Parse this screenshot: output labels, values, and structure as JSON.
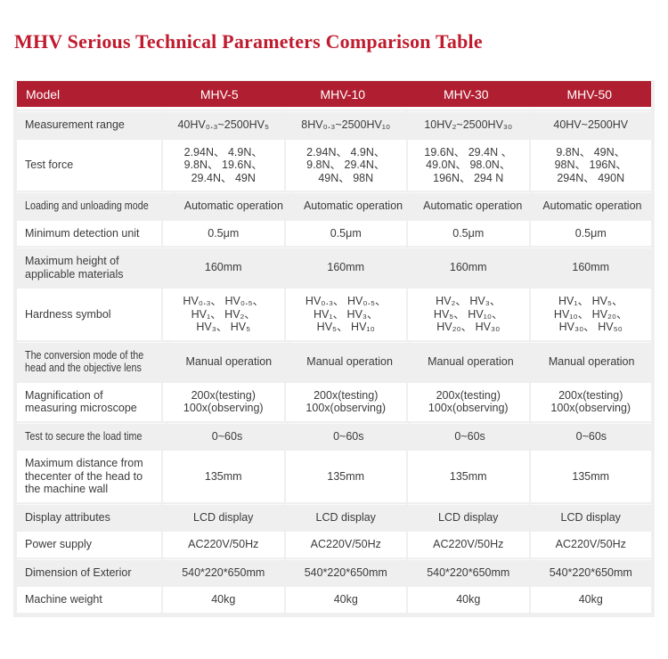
{
  "page": {
    "title": "MHV Serious Technical Parameters Comparison Table"
  },
  "colors": {
    "title_red": "#c01b2e",
    "header_bg": "#b01f31",
    "shade_row": "#f0efef"
  },
  "table": {
    "header": [
      "Model",
      "MHV-5",
      "MHV-10",
      "MHV-30",
      "MHV-50"
    ],
    "rows": [
      {
        "label": "Measurement range",
        "shade": true,
        "condensed": false,
        "values": [
          "40HV₀.₃~2500HV₅",
          "8HV₀.₃~2500HV₁₀",
          "10HV₂~2500HV₃₀",
          "40HV~2500HV"
        ]
      },
      {
        "label": "Test force",
        "shade": false,
        "condensed": false,
        "values": [
          "2.94N、 4.9N、\n9.8N、 19.6N、\n29.4N、 49N",
          "2.94N、 4.9N、\n9.8N、 29.4N、\n49N、 98N",
          "19.6N、 29.4N 、\n49.0N、 98.0N、\n196N、 294 N",
          "9.8N、 49N、\n98N、 196N、\n294N、 490N"
        ]
      },
      {
        "label": "Loading and unloading mode",
        "shade": true,
        "condensed": true,
        "values": [
          "Automatic operation",
          "Automatic operation",
          "Automatic operation",
          "Automatic operation"
        ]
      },
      {
        "label": "Minimum detection unit",
        "shade": false,
        "condensed": false,
        "values": [
          "0.5μm",
          "0.5μm",
          "0.5μm",
          "0.5μm"
        ]
      },
      {
        "label": "Maximum height of\napplicable materials",
        "shade": true,
        "condensed": false,
        "values": [
          "160mm",
          "160mm",
          "160mm",
          "160mm"
        ]
      },
      {
        "label": "Hardness symbol",
        "shade": false,
        "condensed": false,
        "values": [
          "HV₀.₃、 HV₀.₅、\nHV₁、 HV₂、\nHV₃、 HV₅",
          "HV₀.₃、 HV₀.₅、\nHV₁、 HV₃、\nHV₅、 HV₁₀",
          "HV₂、 HV₃、\nHV₅、 HV₁₀、\nHV₂₀、 HV₃₀",
          "HV₁、 HV₅、\nHV₁₀、 HV₂₀、\nHV₃₀、 HV₅₀"
        ]
      },
      {
        "label": "The conversion mode of the\nhead and the objective lens",
        "shade": true,
        "condensed": true,
        "values": [
          "Manual operation",
          "Manual operation",
          "Manual operation",
          "Manual operation"
        ]
      },
      {
        "label": "Magnification of\nmeasuring microscope",
        "shade": false,
        "condensed": false,
        "values": [
          "200x(testing)\n100x(observing)",
          "200x(testing)\n100x(observing)",
          "200x(testing)\n100x(observing)",
          "200x(testing)\n100x(observing)"
        ]
      },
      {
        "label": "Test to secure the load time",
        "shade": true,
        "condensed": true,
        "values": [
          "0~60s",
          "0~60s",
          "0~60s",
          "0~60s"
        ]
      },
      {
        "label": "Maximum distance from\nthecenter of the head to\nthe machine wall",
        "shade": false,
        "condensed": false,
        "values": [
          "135mm",
          "135mm",
          "135mm",
          "135mm"
        ]
      },
      {
        "label": "Display attributes",
        "shade": true,
        "condensed": false,
        "values": [
          "LCD display",
          "LCD display",
          "LCD display",
          "LCD display"
        ]
      },
      {
        "label": "Power supply",
        "shade": false,
        "condensed": false,
        "values": [
          "AC220V/50Hz",
          "AC220V/50Hz",
          "AC220V/50Hz",
          "AC220V/50Hz"
        ]
      },
      {
        "label": "Dimension of Exterior",
        "shade": true,
        "condensed": false,
        "values": [
          "540*220*650mm",
          "540*220*650mm",
          "540*220*650mm",
          "540*220*650mm"
        ]
      },
      {
        "label": "Machine weight",
        "shade": false,
        "condensed": false,
        "values": [
          "40kg",
          "40kg",
          "40kg",
          "40kg"
        ]
      }
    ]
  }
}
